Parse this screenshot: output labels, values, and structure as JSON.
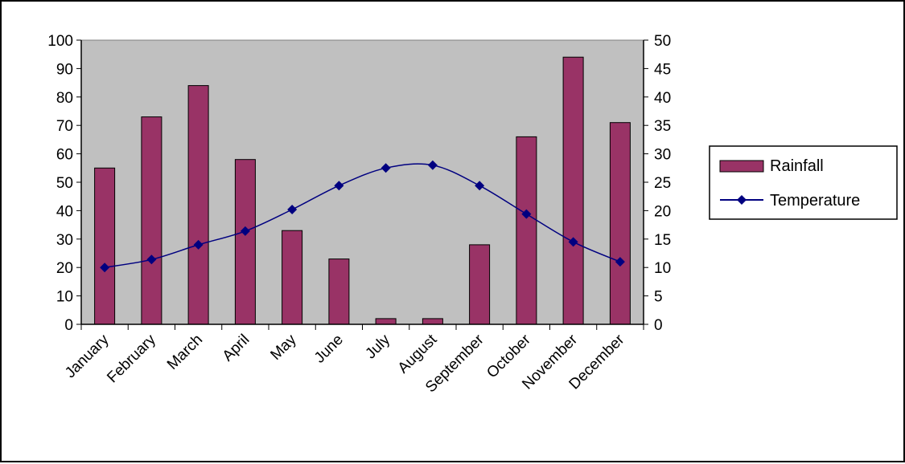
{
  "chart_data": {
    "type": "bar",
    "categories": [
      "January",
      "February",
      "March",
      "April",
      "May",
      "June",
      "July",
      "August",
      "September",
      "October",
      "November",
      "December"
    ],
    "series": [
      {
        "name": "Rainfall",
        "type": "bar",
        "axis": "left",
        "color": "#993366",
        "values": [
          55,
          73,
          84,
          58,
          33,
          23,
          2,
          2,
          28,
          66,
          94,
          71
        ]
      },
      {
        "name": "Temperature",
        "type": "line",
        "axis": "right",
        "color": "#000080",
        "values": [
          10,
          11.4,
          14,
          16.4,
          20.2,
          24.4,
          27.5,
          28,
          24.4,
          19.4,
          14.5,
          11
        ]
      }
    ],
    "ylim_left": [
      0,
      100
    ],
    "yticks_left": [
      0,
      10,
      20,
      30,
      40,
      50,
      60,
      70,
      80,
      90,
      100
    ],
    "ylim_right": [
      0,
      50
    ],
    "yticks_right": [
      0,
      5,
      10,
      15,
      20,
      25,
      30,
      35,
      40,
      45,
      50
    ],
    "title": "",
    "xlabel": "",
    "ylabel": "",
    "plot_background": "#c0c0c0",
    "grid": false,
    "legend_position": "right"
  }
}
